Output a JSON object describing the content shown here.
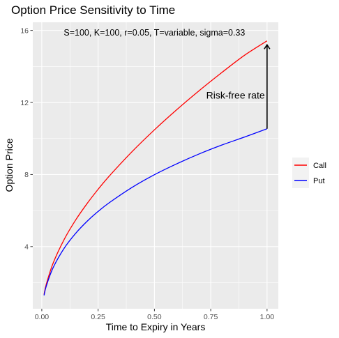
{
  "chart_data": {
    "type": "line",
    "title": "Option Price Sensitivity to Time",
    "xlabel": "Time to Expiry in Years",
    "ylabel": "Option Price",
    "xlim": [
      -0.04,
      1.05
    ],
    "ylim": [
      0.55,
      16.45
    ],
    "xticks": [
      0.0,
      0.25,
      0.5,
      0.75,
      1.0
    ],
    "xtick_labels": [
      "0.00",
      "0.25",
      "0.50",
      "0.75",
      "1.00"
    ],
    "yticks": [
      4,
      8,
      12,
      16
    ],
    "ytick_labels": [
      "4",
      "8",
      "12",
      "16"
    ],
    "grid": true,
    "legend_position": "right",
    "series": [
      {
        "name": "Call",
        "color": "#ff0000",
        "x": [
          0.01,
          0.02,
          0.05,
          0.1,
          0.15,
          0.2,
          0.25,
          0.3,
          0.4,
          0.5,
          0.6,
          0.7,
          0.8,
          0.9,
          1.0
        ],
        "y": [
          1.34,
          1.91,
          3.07,
          4.41,
          5.47,
          6.37,
          7.18,
          7.92,
          9.26,
          10.48,
          11.61,
          12.67,
          13.67,
          14.62,
          15.42
        ]
      },
      {
        "name": "Put",
        "color": "#0000ff",
        "x": [
          0.01,
          0.02,
          0.05,
          0.1,
          0.15,
          0.2,
          0.25,
          0.3,
          0.4,
          0.5,
          0.6,
          0.7,
          0.8,
          0.9,
          1.0
        ],
        "y": [
          1.29,
          1.81,
          2.82,
          3.92,
          4.73,
          5.39,
          5.95,
          6.44,
          7.28,
          7.99,
          8.6,
          9.15,
          9.64,
          10.08,
          10.54
        ]
      }
    ],
    "annotations": {
      "params": {
        "text": "S=100, K=100, r=0.05, T=variable, sigma=0.33",
        "x": 0.5,
        "y": 15.9
      },
      "rate": {
        "text": "Risk-free rate",
        "x": 0.86,
        "y": 12.4
      },
      "arrow": {
        "x": 1.0,
        "y_from": 10.54,
        "y_to": 15.2
      }
    }
  }
}
